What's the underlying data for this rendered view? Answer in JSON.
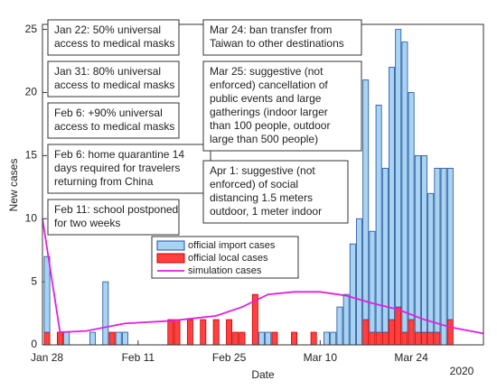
{
  "chart_data": {
    "type": "bar",
    "xlabel": "Date",
    "ylabel": "New cases",
    "x_year_label": "2020",
    "xlim": [
      27.3,
      95.1
    ],
    "xticks": [
      {
        "value": 28,
        "label": "Jan 28"
      },
      {
        "value": 42,
        "label": "Feb 11"
      },
      {
        "value": 56,
        "label": "Feb 25"
      },
      {
        "value": 70,
        "label": "Mar 10"
      },
      {
        "value": 84,
        "label": "Mar 24"
      }
    ],
    "ylim": [
      0,
      25.4
    ],
    "yticks": [
      0,
      5,
      10,
      15,
      20,
      25
    ],
    "x": [
      28,
      30,
      31,
      35,
      37,
      38,
      39,
      40,
      47,
      48,
      50,
      52,
      54,
      56,
      57,
      58,
      60,
      61,
      62,
      63,
      66,
      69,
      71,
      72,
      73,
      74,
      75,
      76,
      77,
      78,
      79,
      80,
      81,
      82,
      83,
      84,
      85,
      86,
      87,
      88,
      89,
      90
    ],
    "series": [
      {
        "name": "official local cases",
        "color": "#ff4040",
        "stroke": "#cc0000",
        "values": [
          1,
          1,
          0,
          0,
          0,
          1,
          0,
          0,
          2,
          2,
          2,
          2,
          2,
          2,
          1,
          1,
          4,
          0,
          0,
          1,
          1,
          1,
          0,
          0,
          0,
          0,
          0,
          0,
          2,
          1,
          1,
          1,
          2,
          3,
          1,
          2,
          1,
          1,
          1,
          1,
          0,
          2
        ]
      },
      {
        "name": "official import cases",
        "color": "#a8d4f2",
        "stroke": "#1f4e9c",
        "values": [
          6,
          0,
          1,
          1,
          5,
          0,
          1,
          1,
          0,
          0,
          0,
          0,
          0,
          0,
          0,
          0,
          0,
          1,
          1,
          0,
          0,
          0,
          1,
          1,
          3,
          4,
          8,
          10,
          19,
          8,
          18,
          13,
          20,
          22,
          23,
          18,
          14,
          14,
          11,
          13,
          14,
          12
        ]
      }
    ],
    "line": {
      "name": "simulation cases",
      "color": "#e020e0",
      "x": [
        27.3,
        30,
        34,
        40,
        47,
        54,
        58,
        62,
        66,
        70,
        74,
        78,
        82,
        86,
        90,
        95.1
      ],
      "values": [
        10,
        1,
        1.1,
        1.7,
        1.9,
        2.3,
        3,
        4,
        4.2,
        4.2,
        3.9,
        3.3,
        2.8,
        2,
        1.4,
        0.9
      ]
    },
    "legend_order": [
      "official import cases",
      "official local cases",
      "simulation cases"
    ],
    "annotations": [
      [
        "Jan 22: 50% universal",
        "access to medical masks"
      ],
      [
        "Jan 31: 80% universal",
        "access to medical masks"
      ],
      [
        "Feb 6: +90% universal",
        "access to medical masks"
      ],
      [
        "Feb 6: home quarantine 14",
        "days required for travelers",
        "returning from China"
      ],
      [
        "Feb 11: school postponed",
        "for two weeks"
      ],
      [
        "Mar 24: ban transfer from",
        "Taiwan to other destinations"
      ],
      [
        "Mar 25: suggestive (not",
        "enforced) cancellation of",
        "public events and large",
        "gatherings (indoor larger",
        "than 100 people, outdoor",
        "large than 500 people)"
      ],
      [
        "Apr 1: suggestive (not",
        "enforced) of social",
        "distancing 1.5 meters",
        "outdoor, 1 meter indoor"
      ]
    ]
  }
}
